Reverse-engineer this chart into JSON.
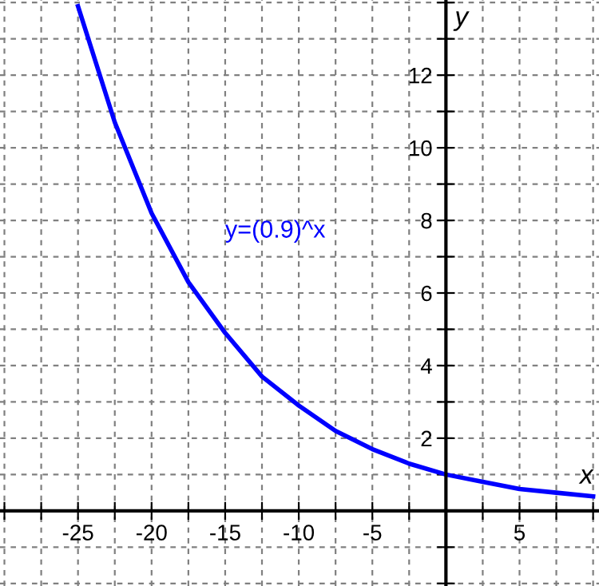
{
  "chart_data": {
    "type": "line",
    "xlabel": "x",
    "ylabel": "y",
    "x": [
      -25,
      -22.5,
      -20,
      -17.5,
      -15,
      -12.5,
      -10,
      -7.5,
      -5,
      -2.5,
      0,
      2.5,
      5,
      7.5,
      10
    ],
    "series": [
      {
        "name": "y=(0.9)^x",
        "color": "#0000ff",
        "values": [
          13.9,
          10.7,
          8.2,
          6.3,
          4.9,
          3.7,
          2.9,
          2.2,
          1.7,
          1.3,
          1.0,
          0.8,
          0.6,
          0.5,
          0.4
        ]
      }
    ],
    "xlim": [
      -30.3,
      10.4
    ],
    "ylim": [
      -2.07,
      14.07
    ],
    "xticks": [
      {
        "value": -30,
        "label": null
      },
      {
        "value": -27.5,
        "label": null
      },
      {
        "value": -25,
        "label": "-25"
      },
      {
        "value": -22.5,
        "label": null
      },
      {
        "value": -20,
        "label": "-20"
      },
      {
        "value": -17.5,
        "label": null
      },
      {
        "value": -15,
        "label": "-15"
      },
      {
        "value": -12.5,
        "label": null
      },
      {
        "value": -10,
        "label": "-10"
      },
      {
        "value": -7.5,
        "label": null
      },
      {
        "value": -5,
        "label": "-5"
      },
      {
        "value": -2.5,
        "label": null
      },
      {
        "value": 2.5,
        "label": null
      },
      {
        "value": 5,
        "label": "5"
      },
      {
        "value": 7.5,
        "label": null
      },
      {
        "value": 10,
        "label": null
      }
    ],
    "yticks": [
      {
        "value": -2,
        "label": null
      },
      {
        "value": -1,
        "label": null
      },
      {
        "value": 1,
        "label": null
      },
      2,
      {
        "value": 3,
        "label": null
      },
      4,
      {
        "value": 5,
        "label": null
      },
      6,
      {
        "value": 7,
        "label": null
      },
      8,
      {
        "value": 9,
        "label": null
      },
      10,
      {
        "value": 11,
        "label": null
      },
      12,
      {
        "value": 13,
        "label": null
      },
      {
        "value": 14,
        "label": null
      }
    ],
    "grid": true,
    "legend": false,
    "marker": "none",
    "line_style": "solid"
  }
}
